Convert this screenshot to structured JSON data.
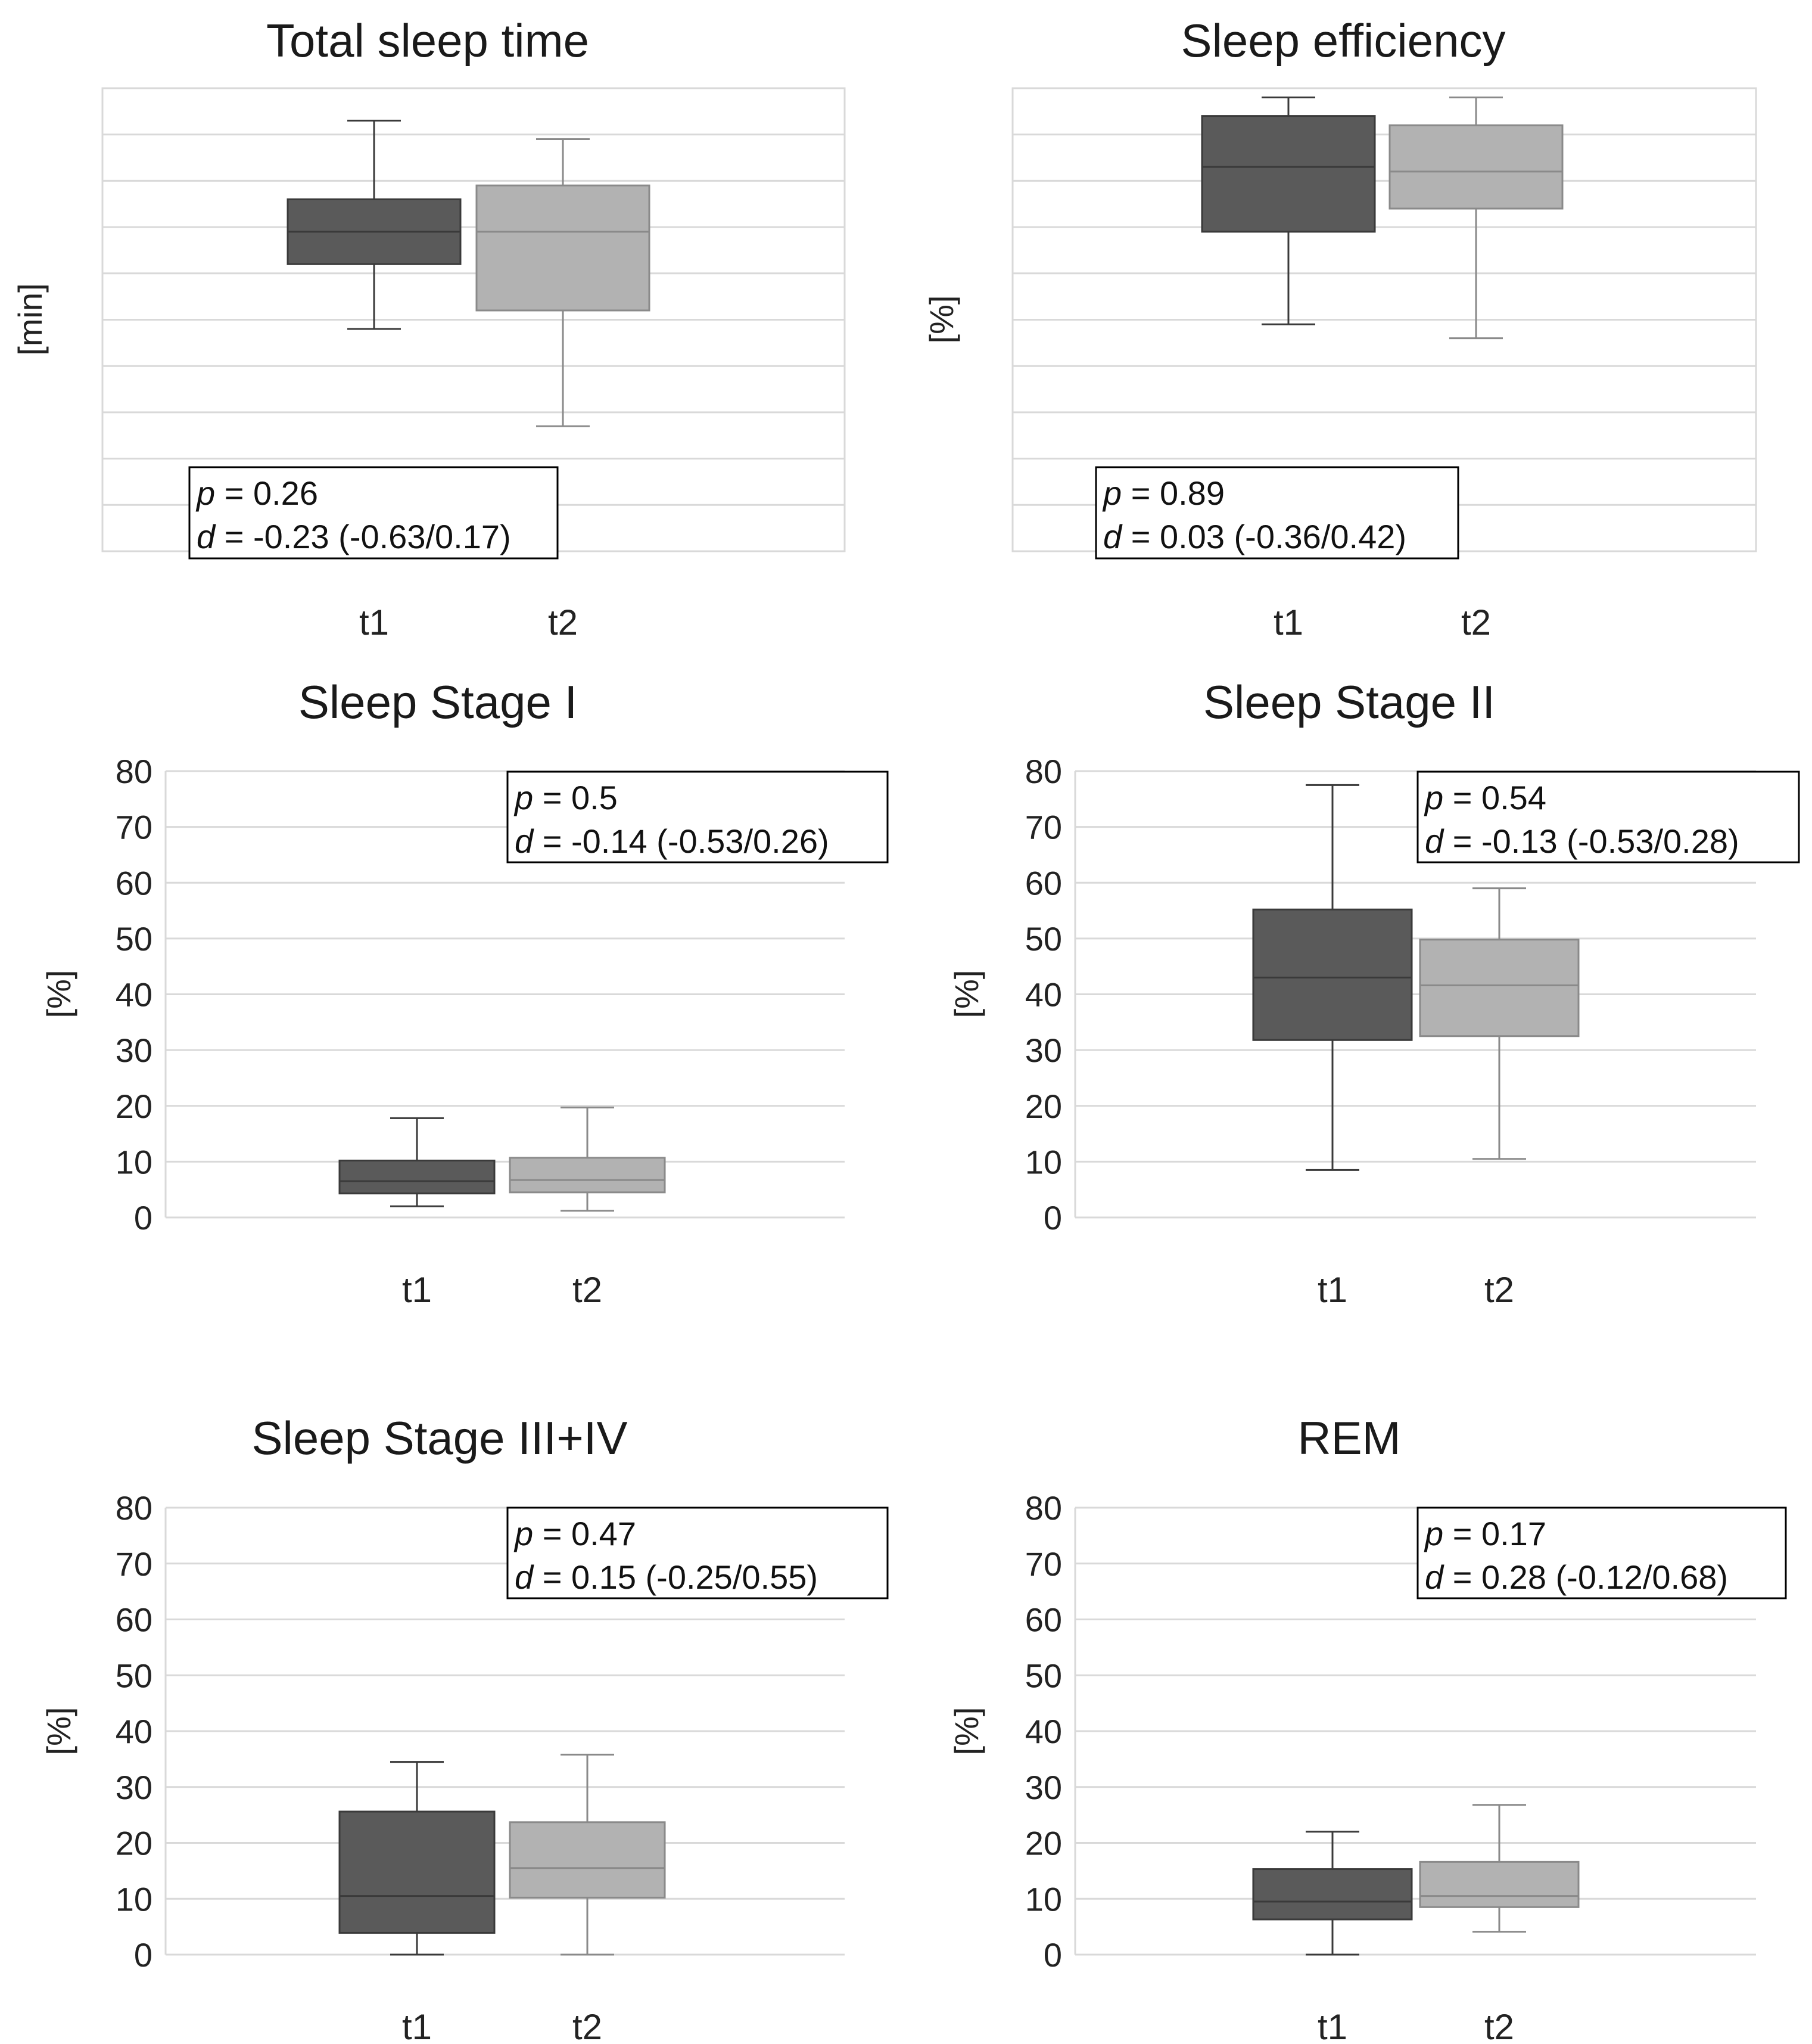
{
  "chart_data": [
    {
      "type": "boxplot",
      "title": "Total sleep time",
      "ylabel": "[min]",
      "ylim": [
        0,
        10
      ],
      "show_tick_labels": false,
      "gridlines": 10,
      "categories": [
        "t1",
        "t2"
      ],
      "colors": [
        "#5a5a5a",
        "#b2b2b2"
      ],
      "boxes": [
        {
          "name": "t1",
          "min": 4.8,
          "q1": 6.2,
          "median": 6.9,
          "q3": 7.6,
          "max": 9.3
        },
        {
          "name": "t2",
          "min": 2.7,
          "q1": 5.2,
          "median": 6.9,
          "q3": 7.9,
          "max": 8.9
        }
      ],
      "stats": {
        "p_label": "p",
        "p_text": " = 0.26",
        "d_label": "d",
        "d_text": " = -0.23 (-0.63/0.17)"
      },
      "stats_position": "bottom-left"
    },
    {
      "type": "boxplot",
      "title": "Sleep efficiency",
      "ylabel": "[%]",
      "ylim": [
        0,
        10
      ],
      "show_tick_labels": false,
      "gridlines": 10,
      "categories": [
        "t1",
        "t2"
      ],
      "colors": [
        "#5a5a5a",
        "#b2b2b2"
      ],
      "boxes": [
        {
          "name": "t1",
          "min": 4.9,
          "q1": 6.9,
          "median": 8.3,
          "q3": 9.4,
          "max": 9.8
        },
        {
          "name": "t2",
          "min": 4.6,
          "q1": 7.4,
          "median": 8.2,
          "q3": 9.2,
          "max": 9.8
        }
      ],
      "stats": {
        "p_label": "p",
        "p_text": " = 0.89",
        "d_label": "d",
        "d_text": " = 0.03 (-0.36/0.42)"
      },
      "stats_position": "bottom-left"
    },
    {
      "type": "boxplot",
      "title": "Sleep Stage I",
      "ylabel": "[%]",
      "ylim": [
        0,
        80
      ],
      "show_tick_labels": true,
      "yticks": [
        0,
        10,
        20,
        30,
        40,
        50,
        60,
        70,
        80
      ],
      "categories": [
        "t1",
        "t2"
      ],
      "colors": [
        "#5a5a5a",
        "#b2b2b2"
      ],
      "boxes": [
        {
          "name": "t1",
          "min": 2,
          "q1": 4.3,
          "median": 6.5,
          "q3": 10.2,
          "max": 17.8
        },
        {
          "name": "t2",
          "min": 1.2,
          "q1": 4.5,
          "median": 6.7,
          "q3": 10.7,
          "max": 19.7
        }
      ],
      "stats": {
        "p_label": "p",
        "p_text": " = 0.5",
        "d_label": "d",
        "d_text": " = -0.14 (-0.53/0.26)"
      },
      "stats_position": "top-right"
    },
    {
      "type": "boxplot",
      "title": "Sleep Stage II",
      "ylabel": "[%]",
      "ylim": [
        0,
        80
      ],
      "show_tick_labels": true,
      "yticks": [
        0,
        10,
        20,
        30,
        40,
        50,
        60,
        70,
        80
      ],
      "categories": [
        "t1",
        "t2"
      ],
      "colors": [
        "#5a5a5a",
        "#b2b2b2"
      ],
      "boxes": [
        {
          "name": "t1",
          "min": 8.5,
          "q1": 31.8,
          "median": 43,
          "q3": 55.2,
          "max": 77.5
        },
        {
          "name": "t2",
          "min": 10.5,
          "q1": 32.5,
          "median": 41.6,
          "q3": 49.8,
          "max": 59
        }
      ],
      "stats": {
        "p_label": "p",
        "p_text": " = 0.54",
        "d_label": "d",
        "d_text": " = -0.13 (-0.53/0.28)"
      },
      "stats_position": "top-right"
    },
    {
      "type": "boxplot",
      "title": "Sleep Stage III+IV",
      "ylabel": "[%]",
      "ylim": [
        0,
        80
      ],
      "show_tick_labels": true,
      "yticks": [
        0,
        10,
        20,
        30,
        40,
        50,
        60,
        70,
        80
      ],
      "categories": [
        "t1",
        "t2"
      ],
      "colors": [
        "#5a5a5a",
        "#b2b2b2"
      ],
      "boxes": [
        {
          "name": "t1",
          "min": 0,
          "q1": 3.9,
          "median": 10.5,
          "q3": 25.6,
          "max": 34.5
        },
        {
          "name": "t2",
          "min": 0,
          "q1": 10.2,
          "median": 15.5,
          "q3": 23.7,
          "max": 35.8
        }
      ],
      "stats": {
        "p_label": "p",
        "p_text": " = 0.47",
        "d_label": "d",
        "d_text": " = 0.15 (-0.25/0.55)"
      },
      "stats_position": "top-right"
    },
    {
      "type": "boxplot",
      "title": "REM",
      "ylabel": "[%]",
      "ylim": [
        0,
        80
      ],
      "show_tick_labels": true,
      "yticks": [
        0,
        10,
        20,
        30,
        40,
        50,
        60,
        70,
        80
      ],
      "categories": [
        "t1",
        "t2"
      ],
      "colors": [
        "#5a5a5a",
        "#b2b2b2"
      ],
      "boxes": [
        {
          "name": "t1",
          "min": 0,
          "q1": 6.3,
          "median": 9.5,
          "q3": 15.3,
          "max": 22
        },
        {
          "name": "t2",
          "min": 4.1,
          "q1": 8.5,
          "median": 10.5,
          "q3": 16.6,
          "max": 26.8
        }
      ],
      "stats": {
        "p_label": "p",
        "p_text": " = 0.17",
        "d_label": "d",
        "d_text": " = 0.28 (-0.12/0.68)"
      },
      "stats_position": "top-right"
    }
  ]
}
